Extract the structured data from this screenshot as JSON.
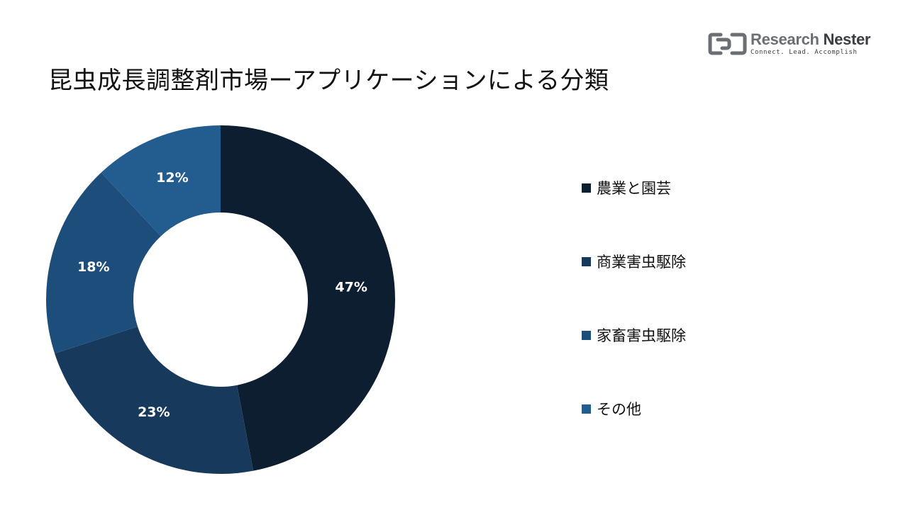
{
  "title": "昆虫成長調整剤市場ーアプリケーションによる分類",
  "logo": {
    "name_light": "Research",
    "name_dark": "Nester",
    "tagline": "Connect. Lead. Accomplish",
    "icon": "research-nester-logo-icon",
    "color": "#6b6e73"
  },
  "chart_data": {
    "type": "pie",
    "donut": true,
    "categories": [
      "農業と園芸",
      "商業害虫駆除",
      "家畜害虫駆除",
      "その他"
    ],
    "values": [
      47,
      23,
      18,
      12
    ],
    "labels": [
      "47%",
      "23%",
      "18%",
      "12%"
    ],
    "colors": [
      "#0c1e30",
      "#17395c",
      "#1d4d7a",
      "#235d8f"
    ],
    "legend_position": "right"
  }
}
